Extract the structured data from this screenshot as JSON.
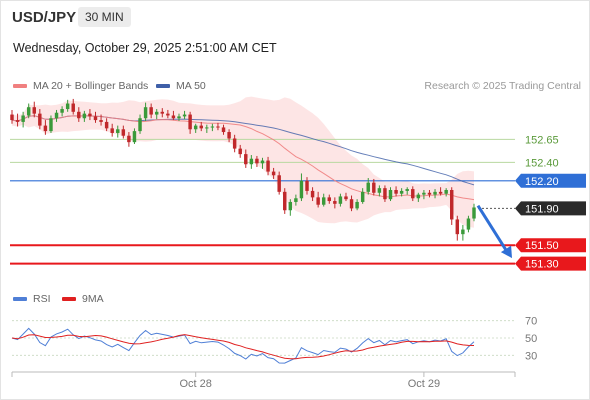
{
  "header": {
    "symbol": "USD/JPY",
    "timeframe": "30 MIN",
    "datetime": "Wednesday, October 29, 2025 2:51:00 AM CET",
    "credit": "Research © 2025 Trading Central"
  },
  "legend": {
    "ma20": "MA 20 + Bollinger Bands",
    "ma50": "MA 50",
    "rsi": "RSI",
    "ma9": "9MA"
  },
  "colors": {
    "ma20": "#f08080",
    "ma50": "#3f5fa8",
    "band_fill": "#fde0e0",
    "up_candle": "#3a9a3a",
    "down_candle": "#c0282b",
    "resistance_green": "#b8d8a0",
    "pivot_blue": "#2f6fd6",
    "support_red": "#e8181c",
    "current_dark": "#2b2b2b",
    "rsi_line": "#4f7fd6",
    "ma9_line": "#e02020"
  },
  "chart_data": [
    {
      "type": "candlestick",
      "title": "USD/JPY 30 MIN",
      "ylim": [
        151.1,
        153.1
      ],
      "x_tick_labels": [
        "Oct 28",
        "Oct 29"
      ],
      "current_price": 151.9,
      "levels": [
        {
          "value": 152.65,
          "label": "152.65",
          "kind": "resistance"
        },
        {
          "value": 152.4,
          "label": "152.40",
          "kind": "resistance"
        },
        {
          "value": 152.2,
          "label": "152.20",
          "kind": "pivot"
        },
        {
          "value": 151.9,
          "label": "151.90",
          "kind": "current"
        },
        {
          "value": 151.5,
          "label": "151.50",
          "kind": "support"
        },
        {
          "value": 151.3,
          "label": "151.30",
          "kind": "support"
        }
      ],
      "forecast_arrow": {
        "from": 151.93,
        "to": 151.36,
        "direction": "down"
      },
      "ohlc": [
        [
          152.92,
          152.97,
          152.82,
          152.86
        ],
        [
          152.86,
          152.93,
          152.79,
          152.84
        ],
        [
          152.84,
          152.95,
          152.78,
          152.91
        ],
        [
          152.91,
          153.04,
          152.88,
          153.0
        ],
        [
          153.0,
          153.06,
          152.89,
          152.93
        ],
        [
          152.93,
          152.98,
          152.76,
          152.8
        ],
        [
          152.8,
          152.86,
          152.7,
          152.74
        ],
        [
          152.74,
          152.91,
          152.72,
          152.88
        ],
        [
          152.88,
          152.97,
          152.84,
          152.94
        ],
        [
          152.94,
          153.01,
          152.9,
          152.98
        ],
        [
          152.98,
          153.08,
          152.95,
          153.04
        ],
        [
          153.04,
          153.09,
          152.92,
          152.95
        ],
        [
          152.95,
          153.0,
          152.84,
          152.88
        ],
        [
          152.88,
          152.96,
          152.84,
          152.93
        ],
        [
          152.93,
          152.98,
          152.86,
          152.9
        ],
        [
          152.9,
          152.95,
          152.83,
          152.86
        ],
        [
          152.86,
          152.92,
          152.8,
          152.84
        ],
        [
          152.84,
          152.88,
          152.74,
          152.77
        ],
        [
          152.77,
          152.82,
          152.68,
          152.72
        ],
        [
          152.72,
          152.8,
          152.67,
          152.76
        ],
        [
          152.76,
          152.8,
          152.66,
          152.69
        ],
        [
          152.69,
          152.73,
          152.57,
          152.62
        ],
        [
          152.62,
          152.77,
          152.6,
          152.74
        ],
        [
          152.74,
          152.92,
          152.71,
          152.88
        ],
        [
          152.88,
          153.05,
          152.85,
          153.0
        ],
        [
          153.0,
          153.04,
          152.88,
          152.92
        ],
        [
          152.92,
          152.98,
          152.87,
          152.95
        ],
        [
          152.95,
          152.99,
          152.89,
          152.93
        ],
        [
          152.93,
          152.97,
          152.88,
          152.91
        ],
        [
          152.91,
          152.96,
          152.86,
          152.88
        ],
        [
          152.88,
          152.93,
          152.85,
          152.9
        ],
        [
          152.9,
          152.96,
          152.87,
          152.92
        ],
        [
          152.92,
          152.95,
          152.71,
          152.76
        ],
        [
          152.76,
          152.82,
          152.72,
          152.8
        ],
        [
          152.8,
          152.84,
          152.74,
          152.77
        ],
        [
          152.77,
          152.81,
          152.72,
          152.78
        ],
        [
          152.78,
          152.82,
          152.74,
          152.79
        ],
        [
          152.79,
          152.83,
          152.75,
          152.78
        ],
        [
          152.78,
          152.81,
          152.7,
          152.73
        ],
        [
          152.73,
          152.76,
          152.62,
          152.66
        ],
        [
          152.66,
          152.7,
          152.51,
          152.55
        ],
        [
          152.55,
          152.59,
          152.45,
          152.49
        ],
        [
          152.49,
          152.54,
          152.34,
          152.38
        ],
        [
          152.38,
          152.48,
          152.33,
          152.44
        ],
        [
          152.44,
          152.47,
          152.35,
          152.39
        ],
        [
          152.39,
          152.45,
          152.33,
          152.42
        ],
        [
          152.42,
          152.46,
          152.26,
          152.3
        ],
        [
          152.3,
          152.34,
          152.22,
          152.26
        ],
        [
          152.26,
          152.3,
          152.05,
          152.08
        ],
        [
          152.08,
          152.12,
          151.84,
          151.88
        ],
        [
          151.88,
          152.0,
          151.82,
          151.97
        ],
        [
          151.97,
          152.05,
          151.93,
          152.01
        ],
        [
          152.01,
          152.28,
          151.98,
          152.2
        ],
        [
          152.2,
          152.24,
          152.05,
          152.09
        ],
        [
          152.09,
          152.13,
          151.98,
          152.02
        ],
        [
          152.02,
          152.08,
          151.91,
          151.94
        ],
        [
          151.94,
          152.06,
          151.92,
          152.02
        ],
        [
          152.02,
          152.05,
          151.95,
          151.98
        ],
        [
          151.98,
          152.02,
          151.9,
          151.95
        ],
        [
          151.95,
          152.06,
          151.92,
          152.03
        ],
        [
          152.03,
          152.07,
          151.98,
          152.0
        ],
        [
          152.0,
          152.04,
          151.87,
          151.9
        ],
        [
          151.9,
          152.0,
          151.88,
          151.97
        ],
        [
          151.97,
          152.12,
          151.95,
          152.08
        ],
        [
          152.08,
          152.23,
          152.05,
          152.18
        ],
        [
          152.18,
          152.22,
          152.04,
          152.07
        ],
        [
          152.07,
          152.15,
          152.03,
          152.12
        ],
        [
          152.12,
          152.15,
          151.97,
          152.0
        ],
        [
          152.0,
          152.13,
          151.98,
          152.1
        ],
        [
          152.1,
          152.14,
          152.03,
          152.06
        ],
        [
          152.06,
          152.12,
          152.03,
          152.09
        ],
        [
          152.09,
          152.13,
          152.05,
          152.11
        ],
        [
          152.11,
          152.14,
          151.98,
          152.01
        ],
        [
          152.01,
          152.07,
          151.97,
          152.05
        ],
        [
          152.05,
          152.1,
          152.0,
          152.07
        ],
        [
          152.07,
          152.1,
          152.02,
          152.05
        ],
        [
          152.05,
          152.11,
          152.01,
          152.08
        ],
        [
          152.08,
          152.13,
          152.04,
          152.06
        ],
        [
          152.06,
          152.12,
          152.03,
          152.1
        ],
        [
          152.1,
          152.13,
          151.72,
          151.78
        ],
        [
          151.78,
          151.82,
          151.55,
          151.62
        ],
        [
          151.62,
          151.72,
          151.55,
          151.67
        ],
        [
          151.67,
          151.82,
          151.64,
          151.79
        ],
        [
          151.79,
          151.95,
          151.76,
          151.91
        ]
      ]
    },
    {
      "type": "line",
      "title": "RSI",
      "y_tick_labels": [
        "70",
        "50",
        "30"
      ],
      "ylim": [
        20,
        80
      ]
    }
  ]
}
